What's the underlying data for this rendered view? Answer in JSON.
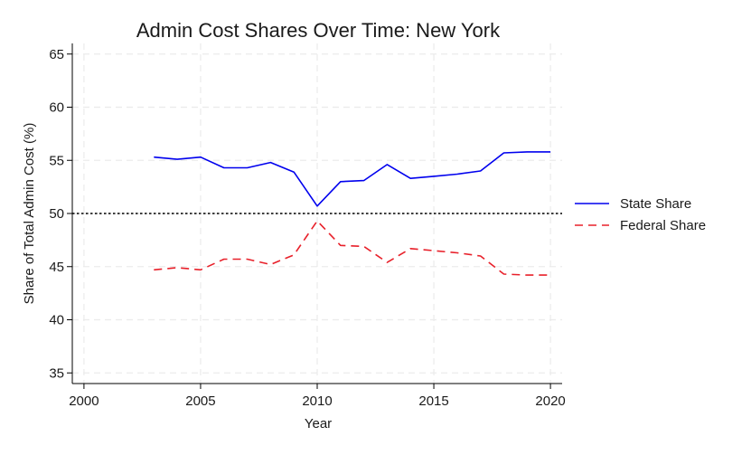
{
  "chart_data": {
    "type": "line",
    "title": "Admin Cost Shares Over Time: New York",
    "xlabel": "Year",
    "ylabel": "Share of Total Admin Cost (%)",
    "xlim": [
      1999.5,
      2020.5
    ],
    "ylim": [
      34,
      66
    ],
    "x_ticks": [
      2000,
      2005,
      2010,
      2015,
      2020
    ],
    "y_ticks": [
      35,
      40,
      45,
      50,
      55,
      60,
      65
    ],
    "grid": true,
    "legend_position": "right",
    "reference_line": {
      "y": 50,
      "style": "dotted",
      "color": "#000000"
    },
    "x": [
      2003,
      2004,
      2005,
      2006,
      2007,
      2008,
      2009,
      2010,
      2011,
      2012,
      2013,
      2014,
      2015,
      2016,
      2017,
      2018,
      2019,
      2020
    ],
    "series": [
      {
        "name": "State Share",
        "color": "#0000ee",
        "style": "solid",
        "values": [
          55.3,
          55.1,
          55.3,
          54.3,
          54.3,
          54.8,
          53.9,
          50.7,
          53.0,
          53.1,
          54.6,
          53.3,
          53.5,
          53.7,
          54.0,
          55.7,
          55.8,
          55.8
        ]
      },
      {
        "name": "Federal Share",
        "color": "#e8202a",
        "style": "dashed",
        "values": [
          44.7,
          44.9,
          44.7,
          45.7,
          45.7,
          45.2,
          46.1,
          49.3,
          47.0,
          46.9,
          45.4,
          46.7,
          46.5,
          46.3,
          46.0,
          44.3,
          44.2,
          44.2
        ]
      }
    ]
  }
}
